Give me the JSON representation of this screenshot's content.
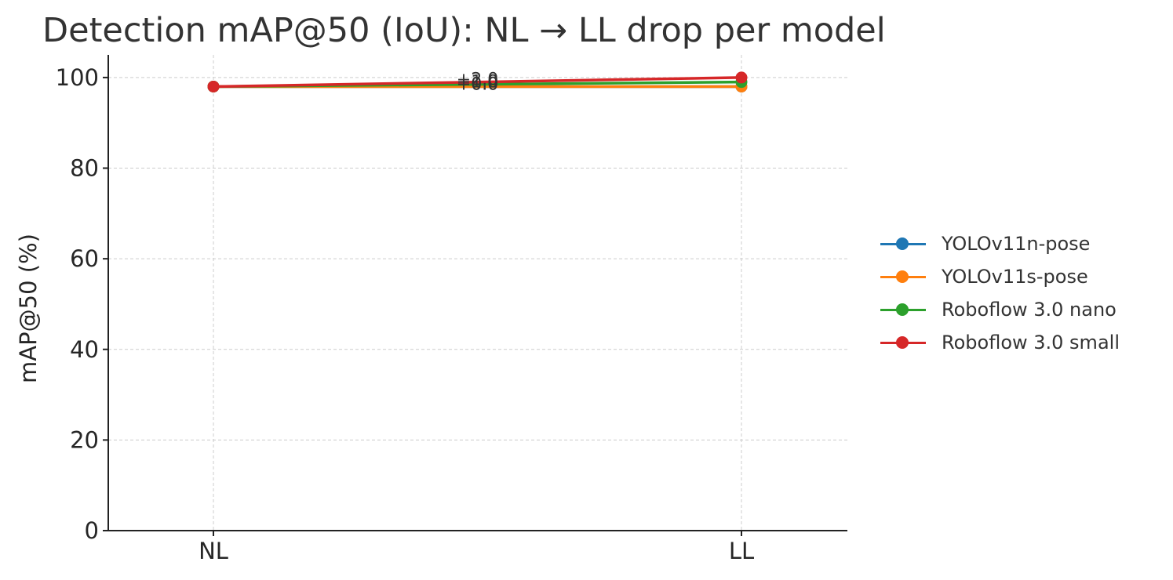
{
  "chart_data": {
    "type": "line",
    "title": "Detection mAP@50 (IoU): NL → LL drop per model",
    "xlabel": "",
    "ylabel": "mAP@50 (%)",
    "categories": [
      "NL",
      "LL"
    ],
    "ylim": [
      0,
      105
    ],
    "yticks": [
      0,
      20,
      40,
      60,
      80,
      100
    ],
    "grid": true,
    "legend_position": "right",
    "series": [
      {
        "name": "YOLOv11n-pose",
        "color": "#1f77b4",
        "values": [
          98.0,
          98.0
        ],
        "annotation": "+0.0"
      },
      {
        "name": "YOLOv11s-pose",
        "color": "#ff7f0e",
        "values": [
          98.0,
          98.0
        ],
        "annotation": "+0.0"
      },
      {
        "name": "Roboflow 3.0 nano",
        "color": "#2ca02c",
        "values": [
          98.0,
          99.0
        ],
        "annotation": "+1.0"
      },
      {
        "name": "Roboflow 3.0 small",
        "color": "#d62728",
        "values": [
          98.0,
          100.0
        ],
        "annotation": "+2.0"
      }
    ]
  }
}
